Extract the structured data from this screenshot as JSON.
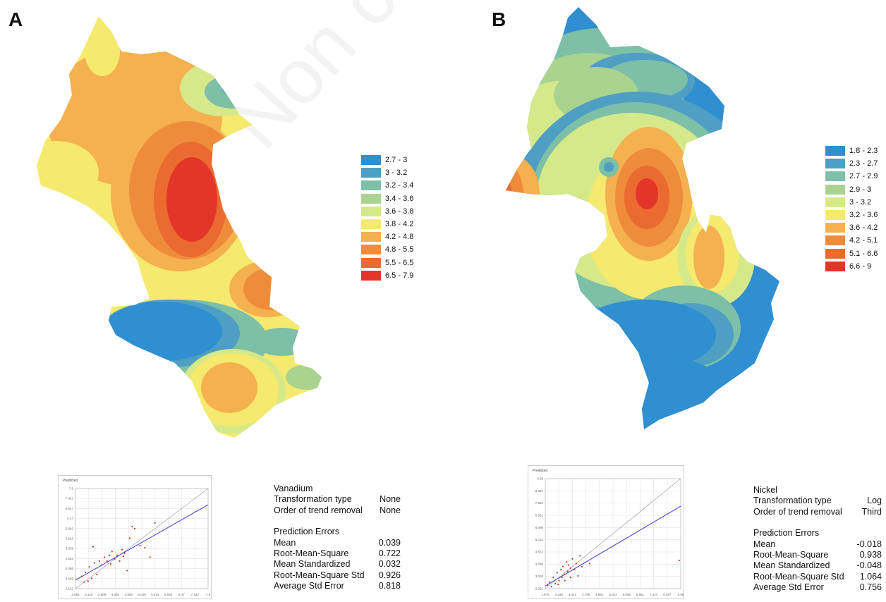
{
  "watermark": "Non commercial use only",
  "panels": [
    {
      "id": "A",
      "letter": "A",
      "legend": [
        {
          "label": "2.7 - 3",
          "color": "#2f8fd0"
        },
        {
          "label": "3 - 3.2",
          "color": "#4e9fc3"
        },
        {
          "label": "3.2 - 3.4",
          "color": "#7dbfa7"
        },
        {
          "label": "3.4 - 3.6",
          "color": "#a9d38f"
        },
        {
          "label": "3.6 - 3.8",
          "color": "#d5e98a"
        },
        {
          "label": "3.8 - 4.2",
          "color": "#f5e96e"
        },
        {
          "label": "4.2 - 4.8",
          "color": "#f5b04f"
        },
        {
          "label": "4.8 - 5.5",
          "color": "#ef8c3c"
        },
        {
          "label": "5.5 - 6.5",
          "color": "#ea6a2f"
        },
        {
          "label": "6.5 - 7.9",
          "color": "#e3352a"
        }
      ],
      "scatter": {
        "ylabel": "Predicted",
        "yticks": [
          "7.9",
          "7.423",
          "6.947",
          "6.47",
          "5.993",
          "5.516",
          "5.039",
          "4.563",
          "4.086",
          "3.609",
          "3.132"
        ],
        "xticks": [
          "2.656",
          "3.132",
          "3.609",
          "4.086",
          "4.563",
          "5.039",
          "5.516",
          "5.993",
          "6.47",
          "7.423",
          "7.9"
        ],
        "xlim": [
          2.656,
          7.9
        ],
        "ylim": [
          2.656,
          7.9
        ],
        "fit_line": [
          [
            2.656,
            3.1
          ],
          [
            7.9,
            7.05
          ]
        ],
        "points": [
          [
            2.9,
            3.3
          ],
          [
            3.0,
            3.0
          ],
          [
            3.05,
            3.5
          ],
          [
            3.2,
            3.8
          ],
          [
            3.3,
            3.2
          ],
          [
            3.4,
            4.0
          ],
          [
            3.5,
            3.4
          ],
          [
            3.6,
            4.1
          ],
          [
            3.7,
            3.9
          ],
          [
            3.8,
            4.3
          ],
          [
            3.9,
            4.1
          ],
          [
            4.0,
            4.4
          ],
          [
            4.05,
            3.95
          ],
          [
            4.1,
            4.6
          ],
          [
            4.2,
            4.2
          ],
          [
            4.3,
            4.4
          ],
          [
            4.4,
            4.1
          ],
          [
            4.5,
            4.7
          ],
          [
            4.6,
            4.5
          ],
          [
            4.7,
            3.6
          ],
          [
            4.8,
            5.3
          ],
          [
            4.9,
            5.9
          ],
          [
            5.0,
            5.8
          ],
          [
            5.2,
            4.9
          ],
          [
            5.4,
            4.8
          ],
          [
            5.6,
            4.3
          ],
          [
            5.8,
            6.1
          ],
          [
            3.35,
            4.85
          ],
          [
            4.55,
            4.35
          ],
          [
            3.15,
            3.05
          ]
        ]
      },
      "stats": {
        "element": "Vanadium",
        "rows": [
          {
            "label": "Transformation type",
            "value": "None"
          },
          {
            "label": "Order of trend removal",
            "value": "None"
          }
        ],
        "errors_title": "Prediction Errors",
        "errors": [
          {
            "label": "Mean",
            "value": "0.039"
          },
          {
            "label": "Root-Mean-Square",
            "value": "0.722"
          },
          {
            "label": "Mean Standardized",
            "value": "0.032"
          },
          {
            "label": "Root-Mean-Square Std",
            "value": "0.926"
          },
          {
            "label": "Average Std Error",
            "value": "0.818"
          }
        ]
      }
    },
    {
      "id": "B",
      "letter": "B",
      "legend": [
        {
          "label": "1.8 - 2.3",
          "color": "#2f8fd0"
        },
        {
          "label": "2.3 - 2.7",
          "color": "#4e9fc3"
        },
        {
          "label": "2.7 - 2.9",
          "color": "#7dbfa7"
        },
        {
          "label": "2.9 - 3",
          "color": "#a9d38f"
        },
        {
          "label": "3 - 3.2",
          "color": "#d5e98a"
        },
        {
          "label": "3.2 - 3.6",
          "color": "#f5e96e"
        },
        {
          "label": "3.6 - 4.2",
          "color": "#f5b04f"
        },
        {
          "label": "4.2 - 5.1",
          "color": "#ef8c3c"
        },
        {
          "label": "5.1 - 6.6",
          "color": "#ea6a2f"
        },
        {
          "label": "6.6 - 9",
          "color": "#e3352a"
        }
      ],
      "scatter": {
        "ylabel": "Predicted",
        "yticks": [
          "8.98",
          "8.087",
          "7.624",
          "6.861",
          "6.098",
          "5.314",
          "4.551",
          "3.788",
          "3.025",
          "2.262"
        ],
        "xticks": [
          "1.876",
          "2.249",
          "3.023",
          "3.786",
          "4.551",
          "5.314",
          "6.098",
          "6.861",
          "7.624",
          "8.387",
          "8.98"
        ],
        "xlim": [
          1.876,
          8.98
        ],
        "ylim": [
          1.876,
          8.98
        ],
        "fit_line": [
          [
            1.876,
            2.05
          ],
          [
            8.98,
            7.2
          ]
        ],
        "points": [
          [
            2.0,
            2.1
          ],
          [
            2.1,
            2.3
          ],
          [
            2.2,
            2.0
          ],
          [
            2.3,
            2.6
          ],
          [
            2.4,
            2.2
          ],
          [
            2.5,
            2.9
          ],
          [
            2.6,
            2.4
          ],
          [
            2.7,
            3.1
          ],
          [
            2.75,
            2.6
          ],
          [
            2.8,
            3.3
          ],
          [
            2.9,
            2.8
          ],
          [
            3.0,
            3.6
          ],
          [
            3.05,
            3.0
          ],
          [
            3.1,
            3.4
          ],
          [
            3.2,
            3.2
          ],
          [
            3.3,
            3.8
          ],
          [
            3.4,
            3.1
          ],
          [
            3.5,
            3.5
          ],
          [
            3.6,
            2.7
          ],
          [
            3.7,
            4.0
          ],
          [
            2.9,
            2.4
          ],
          [
            3.2,
            2.6
          ],
          [
            2.55,
            2.15
          ],
          [
            4.2,
            3.5
          ],
          [
            3.8,
            3.3
          ],
          [
            8.9,
            3.7
          ]
        ]
      },
      "stats": {
        "element": "Nickel",
        "rows": [
          {
            "label": "Transformation type",
            "value": "Log"
          },
          {
            "label": "Order of trend removal",
            "value": "Third"
          }
        ],
        "errors_title": "Prediction Errors",
        "errors": [
          {
            "label": "Mean",
            "value": "-0.018"
          },
          {
            "label": "Root-Mean-Square",
            "value": "0.938"
          },
          {
            "label": "Mean Standardized",
            "value": "-0.048"
          },
          {
            "label": "Root-Mean-Square Std",
            "value": "1.064"
          },
          {
            "label": "Average Std Error",
            "value": "0.756"
          }
        ]
      }
    }
  ]
}
